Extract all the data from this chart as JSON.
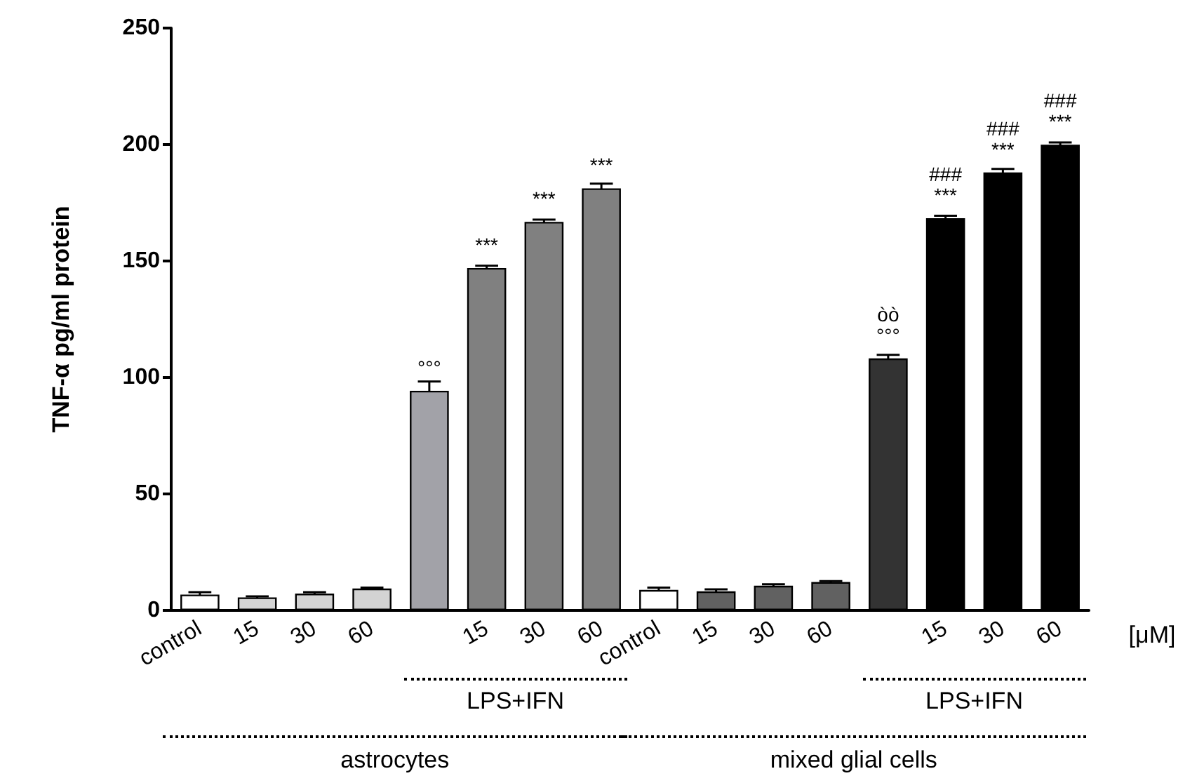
{
  "chart_data": {
    "type": "bar",
    "ylabel": "TNF-α pg/ml protein",
    "categories": [
      "control",
      "15",
      "30",
      "60",
      null,
      "15",
      "30",
      "60",
      "control",
      "15",
      "30",
      "60",
      null,
      "15",
      "30",
      "60"
    ],
    "values": [
      6.8,
      5.6,
      7.2,
      9.4,
      94.3,
      147,
      166.8,
      181.2,
      8.8,
      8.2,
      10.6,
      12.2,
      108.2,
      168.4,
      188,
      199.9
    ],
    "errors": [
      1,
      0.4,
      0.6,
      0.4,
      4,
      1,
      1,
      2,
      1,
      0.8,
      0.6,
      0.4,
      1.5,
      1,
      1.5,
      1
    ],
    "colors": [
      "#ffffff",
      "#d3d3d3",
      "#d3d3d3",
      "#d3d3d3",
      "#a2a2a8",
      "#808080",
      "#808080",
      "#808080",
      "#ffffff",
      "#616161",
      "#616161",
      "#616161",
      "#333333",
      "#000000",
      "#000000",
      "#000000"
    ],
    "ylim": [
      0,
      250
    ],
    "yticks": [
      0,
      50,
      100,
      150,
      200,
      250
    ],
    "grid": false,
    "value_labels": [
      null,
      null,
      null,
      null,
      "°°°",
      "***",
      "***",
      "***",
      null,
      null,
      null,
      null,
      "òò\n°°°",
      "###\n***",
      "###\n***",
      "###\n***"
    ],
    "annotations": [
      "[μM]",
      "LPS+IFN",
      "LPS+IFN",
      "astrocytes",
      "mixed glial cells"
    ]
  }
}
